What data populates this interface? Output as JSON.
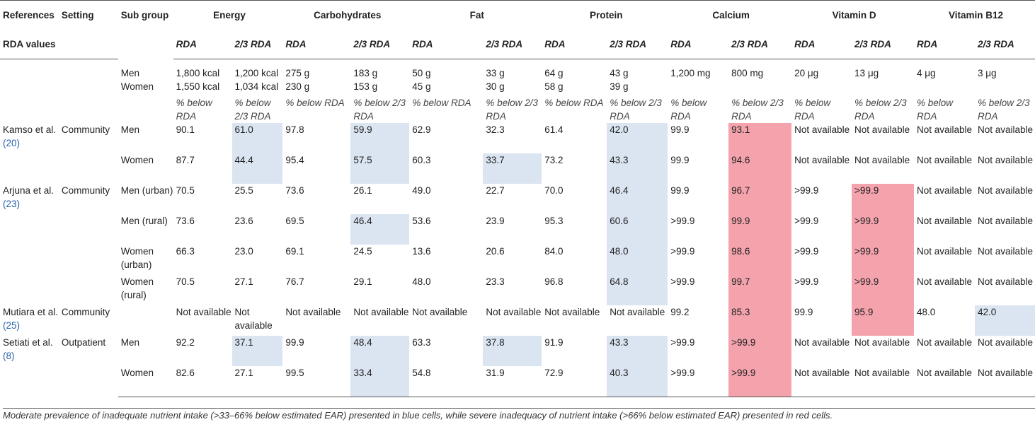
{
  "header": {
    "references": "References",
    "setting": "Setting",
    "sub_group": "Sub group",
    "rda_values": "RDA values",
    "nutrients": [
      "Energy",
      "Carbohydrates",
      "Fat",
      "Protein",
      "Calcium",
      "Vitamin D",
      "Vitamin B12"
    ],
    "rda": "RDA",
    "two_thirds_rda": "2/3 RDA"
  },
  "reference_rows": [
    {
      "subgroup": "Men",
      "values": [
        "1,800 kcal",
        "1,200 kcal",
        "275 g",
        "183 g",
        "50 g",
        "33 g",
        "64 g",
        "43 g",
        "1,200 mg",
        "800 mg",
        "20 μg",
        "13 μg",
        "4 μg",
        "3 μg"
      ]
    },
    {
      "subgroup": "Women",
      "values": [
        "1,550 kcal",
        "1,034 kcal",
        "230 g",
        "153 g",
        "45 g",
        "30 g",
        "58 g",
        "39 g",
        "",
        "",
        "",
        "",
        "",
        ""
      ]
    }
  ],
  "pct_row": [
    "% below RDA",
    "% below 2/3 RDA",
    "% below RDA",
    "% below 2/3 RDA",
    "% below RDA",
    "% below 2/3 RDA",
    "% below RDA",
    "% below 2/3 RDA",
    "% below RDA",
    "% below 2/3 RDA",
    "% below RDA",
    "% below 2/3 RDA",
    "% below RDA",
    "% below 2/3 RDA"
  ],
  "studies": [
    {
      "ref": "Kamso et al.",
      "cite": "(20)",
      "setting": "Community",
      "rows": [
        {
          "subgroup": "Men",
          "values": [
            "90.1",
            "61.0",
            "97.8",
            "59.9",
            "62.9",
            "32.3",
            "61.4",
            "42.0",
            "99.9",
            "93.1",
            "Not available",
            "Not available",
            "Not available",
            "Not available"
          ]
        },
        {
          "subgroup": "Women",
          "values": [
            "87.7",
            "44.4",
            "95.4",
            "57.5",
            "60.3",
            "33.7",
            "73.2",
            "43.3",
            "99.9",
            "94.6",
            "Not available",
            "Not available",
            "Not available",
            "Not available"
          ]
        }
      ]
    },
    {
      "ref": "Arjuna et al.",
      "cite": "(23)",
      "setting": "Community",
      "rows": [
        {
          "subgroup": "Men (urban)",
          "values": [
            "70.5",
            "25.5",
            "73.6",
            "26.1",
            "49.0",
            "22.7",
            "70.0",
            "46.4",
            "99.9",
            "96.7",
            ">99.9",
            ">99.9",
            "Not available",
            "Not available"
          ]
        },
        {
          "subgroup": "Men (rural)",
          "values": [
            "73.6",
            "23.6",
            "69.5",
            "46.4",
            "53.6",
            "23.9",
            "95.3",
            "60.6",
            ">99.9",
            "99.9",
            ">99.9",
            ">99.9",
            "Not available",
            "Not available"
          ]
        },
        {
          "subgroup": "Women (urban)",
          "values": [
            "66.3",
            "23.0",
            "69.1",
            "24.5",
            "13.6",
            "20.6",
            "84.0",
            "48.0",
            ">99.9",
            "98.6",
            ">99.9",
            ">99.9",
            "Not available",
            "Not available"
          ]
        },
        {
          "subgroup": "Women (rural)",
          "values": [
            "70.5",
            "27.1",
            "76.7",
            "29.1",
            "48.0",
            "23.3",
            "96.8",
            "64.8",
            ">99.9",
            "99.7",
            ">99.9",
            ">99.9",
            "Not available",
            "Not available"
          ]
        }
      ]
    },
    {
      "ref": "Mutiara et al.",
      "cite": "(25)",
      "setting": "Community",
      "rows": [
        {
          "subgroup": "",
          "values": [
            "Not available",
            "Not available",
            "Not available",
            "Not available",
            "Not available",
            "Not available",
            "Not available",
            "Not available",
            "99.2",
            "85.3",
            "99.9",
            "95.9",
            "48.0",
            "42.0"
          ]
        }
      ]
    },
    {
      "ref": "Setiati et al.",
      "cite": "(8)",
      "setting": "Outpatient",
      "rows": [
        {
          "subgroup": "Men",
          "values": [
            "92.2",
            "37.1",
            "99.9",
            "48.4",
            "63.3",
            "37.8",
            "91.9",
            "43.3",
            ">99.9",
            ">99.9",
            "Not available",
            "Not available",
            "Not available",
            "Not available"
          ]
        },
        {
          "subgroup": "Women",
          "values": [
            "82.6",
            "27.1",
            "99.5",
            "33.4",
            "54.8",
            "31.9",
            "72.9",
            "40.3",
            ">99.9",
            ">99.9",
            "Not available",
            "Not available",
            "Not available",
            "Not available"
          ]
        }
      ]
    }
  ],
  "colors": {
    "blue": "#dbe5f1",
    "red": "#f4a3ad"
  },
  "footnote": "Moderate prevalence of inadequate nutrient intake (>33–66% below estimated EAR) presented in blue cells, while severe inadequacy of nutrient intake (>66% below estimated EAR) presented in red cells."
}
